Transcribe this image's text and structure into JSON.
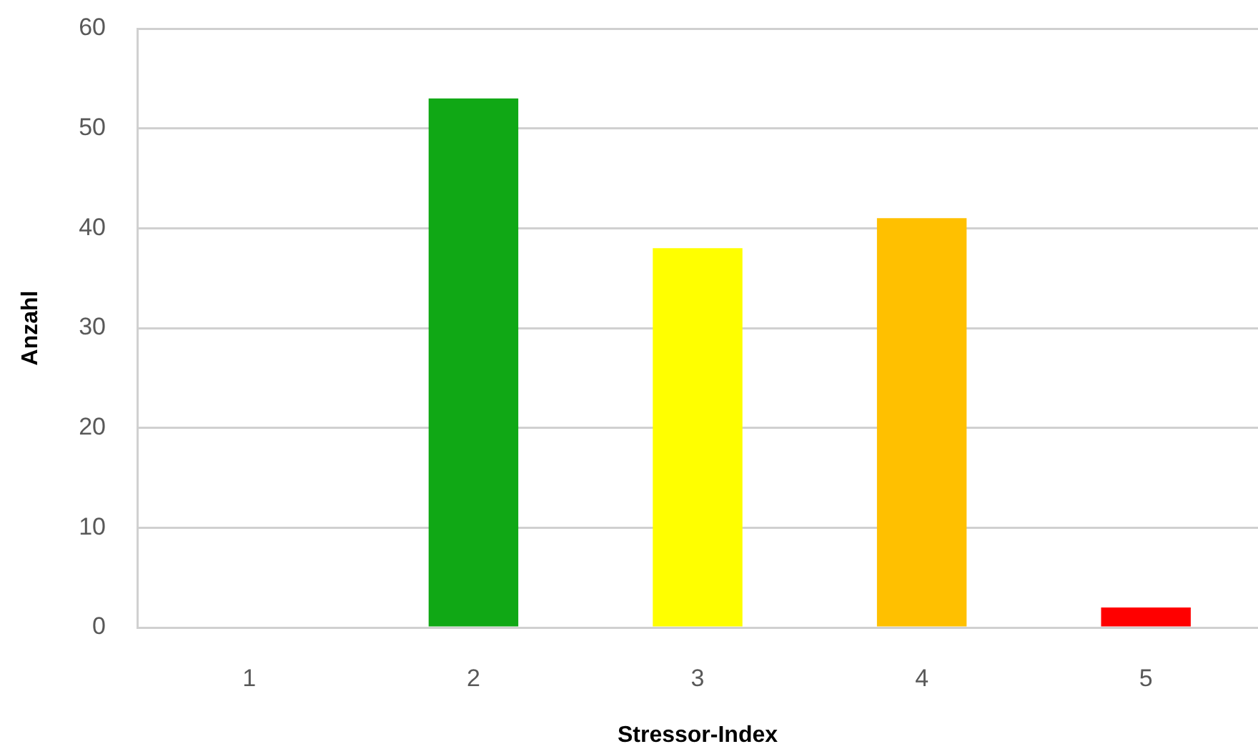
{
  "chart_data": {
    "type": "bar",
    "xlabel": "Stressor-Index",
    "ylabel": "Anzahl",
    "categories": [
      "1",
      "2",
      "3",
      "4",
      "5"
    ],
    "values": [
      0,
      53,
      38,
      41,
      2
    ],
    "colors": [
      null,
      "#10a815",
      "#ffff00",
      "#ffc000",
      "#ff0000"
    ],
    "ylim": [
      0,
      60
    ],
    "yticks": [
      0,
      10,
      20,
      30,
      40,
      50,
      60
    ],
    "grid": "y"
  }
}
